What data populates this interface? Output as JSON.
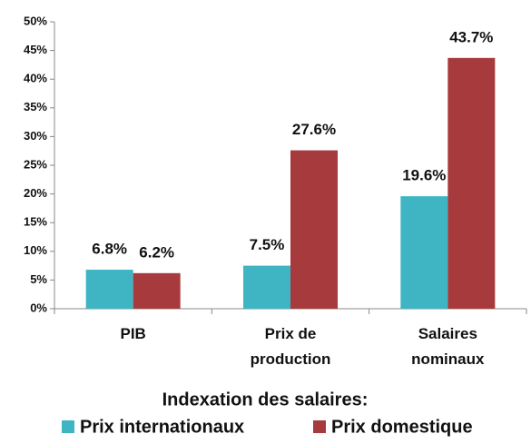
{
  "chart_data": {
    "type": "bar",
    "categories": [
      "PIB",
      "Prix de production",
      "Salaires nominaux"
    ],
    "series": [
      {
        "name": "Prix internationaux",
        "color": "#3fb5c4",
        "values": [
          6.8,
          7.5,
          19.6
        ],
        "value_labels": [
          "6.8%",
          "7.5%",
          "19.6%"
        ]
      },
      {
        "name": "Prix domestique",
        "color": "#a63a3c",
        "values": [
          6.2,
          27.6,
          43.7
        ],
        "value_labels": [
          "6.2%",
          "27.6%",
          "43.7%"
        ]
      }
    ],
    "ylim": [
      0,
      50
    ],
    "yticks": [
      {
        "value": 0,
        "label": "0%"
      },
      {
        "value": 5,
        "label": "5%"
      },
      {
        "value": 10,
        "label": "10%"
      },
      {
        "value": 15,
        "label": "15%"
      },
      {
        "value": 20,
        "label": "20%"
      },
      {
        "value": 25,
        "label": "25%"
      },
      {
        "value": 30,
        "label": "30%"
      },
      {
        "value": 35,
        "label": "35%"
      },
      {
        "value": 40,
        "label": "40%"
      },
      {
        "value": 45,
        "label": "45%"
      },
      {
        "value": 50,
        "label": "50%"
      }
    ],
    "legend_title": "Indexation des salaires:",
    "legend": "bottom"
  }
}
